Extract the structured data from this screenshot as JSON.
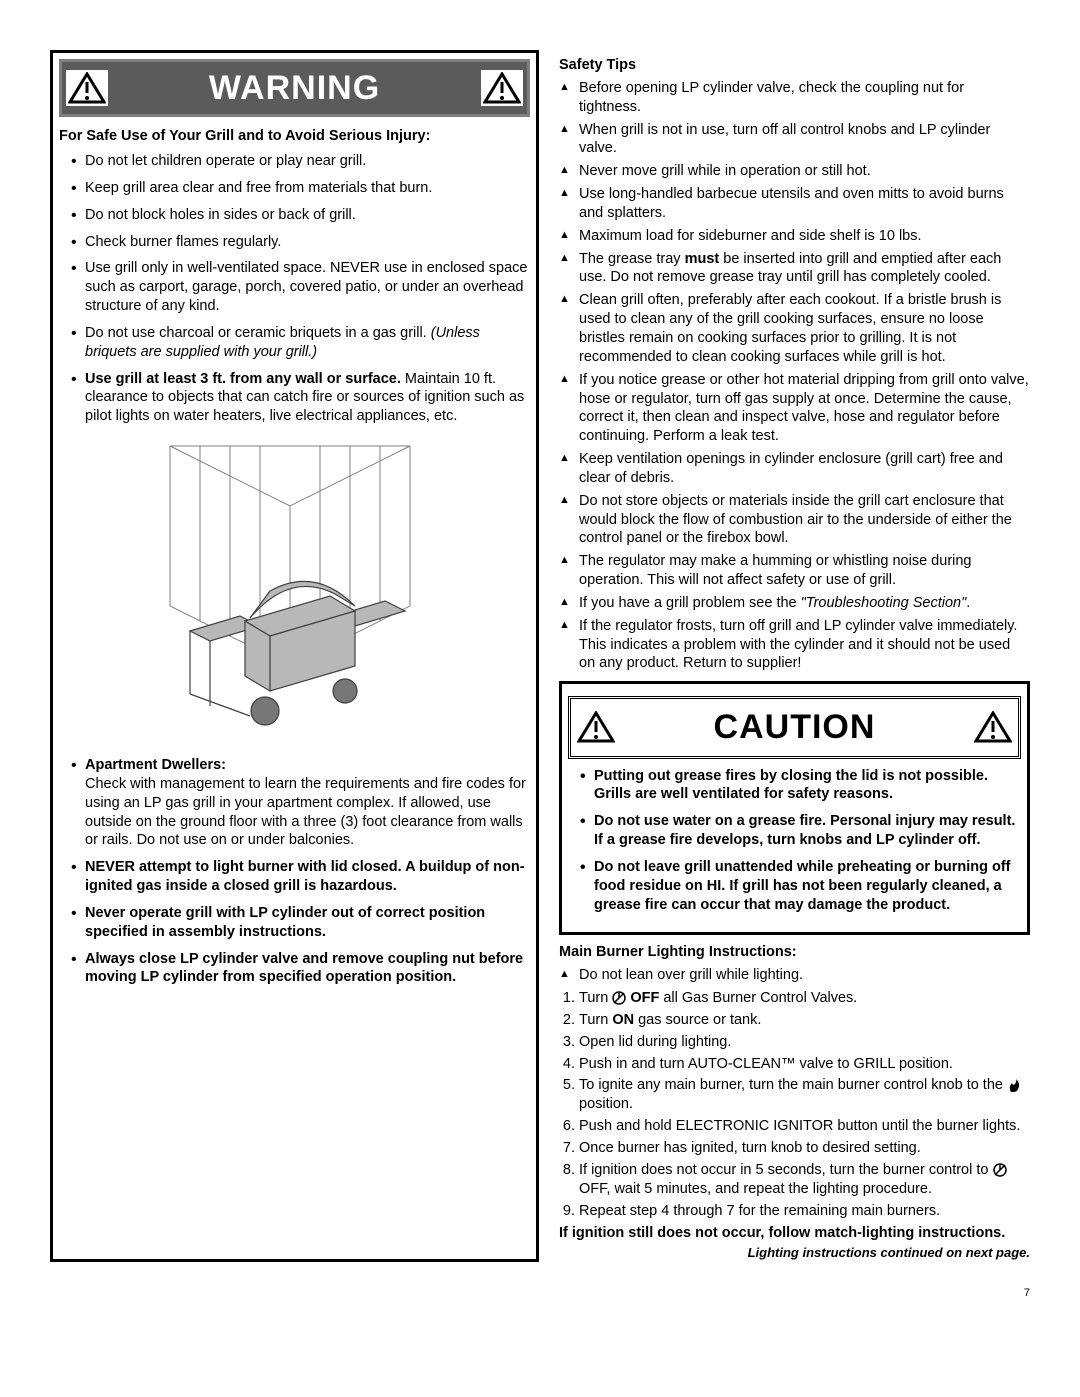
{
  "page_number": "7",
  "warning": {
    "banner": "WARNING",
    "intro": "For Safe Use of Your Grill and to Avoid Serious Injury:",
    "items": [
      {
        "text": "Do not let children operate or play near grill."
      },
      {
        "text": "Keep grill area clear and free from materials that burn."
      },
      {
        "text": "Do not block holes in sides or back of grill."
      },
      {
        "text": "Check burner flames regularly."
      },
      {
        "text": "Use grill only in well-ventilated space. NEVER use in enclosed space such as carport, garage, porch, covered patio, or under an overhead structure of any kind."
      },
      {
        "text": "Do not use charcoal or ceramic briquets in a gas grill. ",
        "italic_after": "(Unless briquets are supplied with your grill.)"
      },
      {
        "bold_lead": "Use grill at least 3 ft. from any wall or surface.",
        "text": " Maintain 10 ft. clearance to objects that can catch fire or sources of ignition such as pilot lights on water heaters, live electrical appliances, etc."
      }
    ],
    "after_figure": [
      {
        "bold_lead": "Apartment Dwellers:",
        "text": "\nCheck with management to learn the requirements and fire codes for using an LP gas grill in your apartment complex. If allowed, use outside on the ground floor with a three (3) foot clearance from walls or rails. Do not use on or under balconies."
      },
      {
        "bold_full": "NEVER attempt to light burner with lid closed. A buildup of non-ignited gas inside a closed grill is hazardous."
      },
      {
        "bold_full": "Never operate grill with LP cylinder out of correct position specified in assembly instructions."
      },
      {
        "bold_full": "Always close LP cylinder valve and remove coupling nut before moving LP cylinder from specified operation position."
      }
    ]
  },
  "safety_tips": {
    "heading": "Safety Tips",
    "items": [
      "Before opening LP cylinder valve, check the coupling nut for tightness.",
      "When grill is not in use, turn off all control knobs and LP cylinder valve.",
      "Never move grill while in operation or still hot.",
      "Use long-handled barbecue utensils and oven mitts to avoid burns and splatters.",
      "Maximum load for sideburner and side shelf is 10 lbs.",
      "__MUST__The grease tray |must| be inserted into grill and emptied after each use. Do not remove grease tray until grill has completely cooled.",
      "Clean grill often, preferably after each cookout. If a bristle brush is used to clean any of the grill cooking surfaces, ensure no loose bristles remain on cooking surfaces prior to grilling. It is not recommended to clean cooking surfaces while grill is hot.",
      "If you notice grease or other hot material dripping from grill onto valve, hose or regulator, turn off gas supply at once. Determine the cause, correct it, then clean and inspect valve, hose and regulator before continuing. Perform a leak test.",
      "Keep ventilation openings in cylinder enclosure (grill cart) free and clear of debris.",
      "Do not store objects or materials inside the grill cart enclosure that would block the flow of combustion air to the underside of either the control panel or the firebox bowl.",
      "The regulator may make a humming or whistling noise during operation. This will not affect safety or use of grill.",
      "__ITALEND__If you have a grill problem see the |\"Troubleshooting Section\"|.",
      "If the regulator frosts, turn off grill and LP cylinder valve immediately. This indicates a problem with the cylinder and it should not be used on any product. Return to supplier!"
    ]
  },
  "caution": {
    "banner": "CAUTION",
    "items": [
      "Putting out grease fires by closing the lid is not possible. Grills are well ventilated for safety reasons.",
      "Do not use water on a grease fire. Personal injury may result. If a grease fire develops, turn knobs and LP cylinder off.",
      "Do not leave grill unattended while preheating or burning off food residue on HI. If grill has not been regularly cleaned, a grease fire can occur that may damage the product."
    ]
  },
  "lighting": {
    "heading": "Main Burner Lighting Instructions:",
    "tri_first": "Do not lean over grill while lighting.",
    "steps": [
      "Turn __KNOB__ __BOLD_OFF__ all Gas Burner Control Valves.",
      "Turn __BOLD_ON__ gas source or tank.",
      "Open lid during lighting.",
      "Push in and turn AUTO-CLEAN™ valve to GRILL position.",
      "To ignite any main burner, turn the main burner control knob to the __FLAME__ position.",
      "Push and hold ELECTRONIC IGNITOR button until the burner lights.",
      "Once burner has ignited, turn knob to desired setting.",
      "If ignition does not occur in 5 seconds, turn the burner control to __KNOB__ OFF, wait 5 minutes, and repeat the lighting procedure.",
      "Repeat step 4 through 7 for the remaining main burners."
    ],
    "footer_bold": "If ignition still does not occur, follow match-lighting instructions.",
    "continued": "Lighting instructions continued on next page."
  }
}
